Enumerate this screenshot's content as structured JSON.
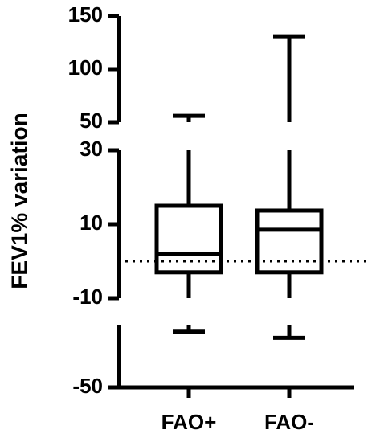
{
  "chart_data": {
    "type": "box",
    "y_label": "FEV1% variation",
    "categories": [
      "FAO+",
      "FAO-"
    ],
    "min": [
      -23,
      -26
    ],
    "q1": [
      -3,
      -3
    ],
    "median": [
      2,
      8.5
    ],
    "q3": [
      15,
      13.7
    ],
    "max": [
      56,
      131
    ],
    "y_segments": [
      {
        "ylim": [
          -50,
          -20
        ],
        "yticks": [
          -50
        ]
      },
      {
        "ylim": [
          -10,
          30
        ],
        "yticks": [
          -10,
          10,
          30
        ]
      },
      {
        "ylim": [
          50,
          150
        ],
        "yticks": [
          50,
          100,
          150
        ]
      }
    ],
    "reference_line": 0,
    "color": "#000000"
  }
}
